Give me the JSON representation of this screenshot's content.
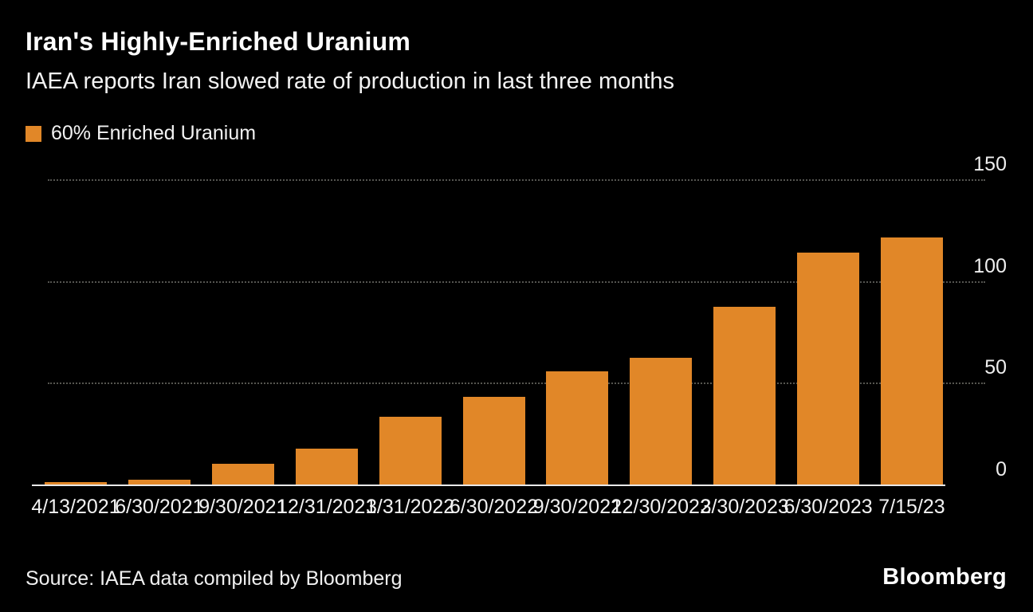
{
  "header": {
    "title": "Iran's Highly-Enriched Uranium",
    "subtitle": "IAEA reports Iran slowed rate of production in last three months"
  },
  "legend": {
    "label": "60% Enriched Uranium",
    "swatch_color": "#E18728"
  },
  "chart_data": {
    "type": "bar",
    "title": "Iran's Highly-Enriched Uranium",
    "subtitle": "IAEA reports Iran slowed rate of production in last three months",
    "series_name": "60% Enriched Uranium",
    "categories": [
      "4/13/2021",
      "6/30/2021",
      "9/30/2021",
      "12/31/2021",
      "3/31/2022",
      "6/30/2022",
      "9/30/2022",
      "12/30/2022",
      "3/30/2023",
      "6/30/2023",
      "7/15/23"
    ],
    "values": [
      1,
      2.5,
      10,
      17.7,
      33.2,
      43.1,
      55.6,
      62.3,
      87.5,
      114.1,
      121.6
    ],
    "bar_color": "#E18728",
    "ylim": [
      0,
      150
    ],
    "yticks": [
      0,
      50,
      100,
      150
    ],
    "ylabel": "",
    "xlabel": "",
    "grid": "horizontal-dotted",
    "y_axis_side": "right",
    "legend_position": "top-left",
    "background_color": "#000000"
  },
  "footer": {
    "source": "Source: IAEA data compiled by Bloomberg",
    "brand": "Bloomberg"
  }
}
